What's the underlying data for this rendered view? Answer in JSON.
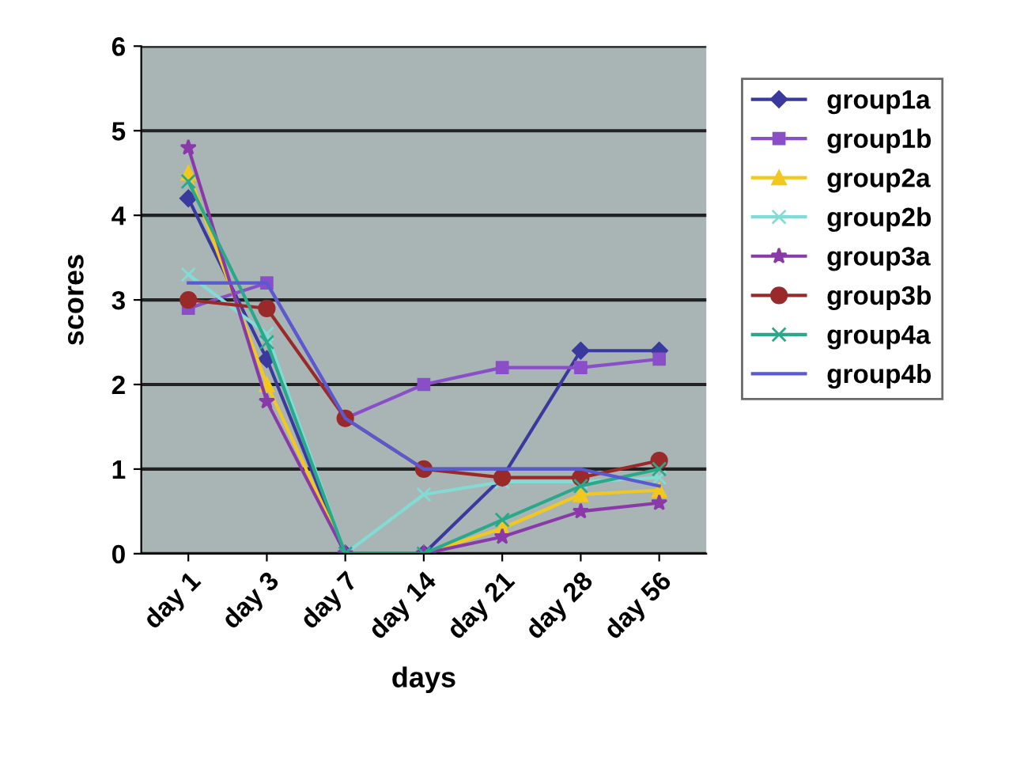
{
  "chart_data": {
    "type": "line",
    "xlabel": "days",
    "ylabel": "scores",
    "categories": [
      "day 1",
      "day 3",
      "day 7",
      "day 14",
      "day 21",
      "day 28",
      "day 56"
    ],
    "ylim": [
      0,
      6
    ],
    "yticks": [
      0,
      1,
      2,
      3,
      4,
      5,
      6
    ],
    "grid": "y",
    "legend": "right",
    "series": [
      {
        "name": "group1a",
        "color": "#3a3a9e",
        "marker": "diamond",
        "values": [
          4.2,
          2.3,
          0,
          0,
          0.9,
          2.4,
          2.4
        ]
      },
      {
        "name": "group1b",
        "color": "#8a4fc8",
        "marker": "square",
        "values": [
          2.9,
          3.2,
          1.6,
          2.0,
          2.2,
          2.2,
          2.3
        ]
      },
      {
        "name": "group2a",
        "color": "#f2c81e",
        "marker": "triangle",
        "values": [
          4.5,
          2.0,
          0,
          0,
          0.3,
          0.7,
          0.75
        ]
      },
      {
        "name": "group2b",
        "color": "#80dcd4",
        "marker": "cross",
        "values": [
          3.3,
          2.6,
          0,
          0.7,
          0.85,
          0.85,
          0.9
        ]
      },
      {
        "name": "group3a",
        "color": "#8a3aa8",
        "marker": "star",
        "values": [
          4.8,
          1.8,
          0,
          0,
          0.2,
          0.5,
          0.6
        ]
      },
      {
        "name": "group3b",
        "color": "#9a2a2a",
        "marker": "circle",
        "values": [
          3.0,
          2.9,
          1.6,
          1.0,
          0.9,
          0.9,
          1.1
        ]
      },
      {
        "name": "group4a",
        "color": "#2aa88a",
        "marker": "cross",
        "values": [
          4.4,
          2.5,
          0,
          0,
          0.4,
          0.8,
          1.0
        ]
      },
      {
        "name": "group4b",
        "color": "#5a5ad0",
        "marker": "none",
        "values": [
          3.2,
          3.2,
          1.6,
          1.0,
          1.0,
          1.0,
          0.8
        ]
      }
    ]
  }
}
